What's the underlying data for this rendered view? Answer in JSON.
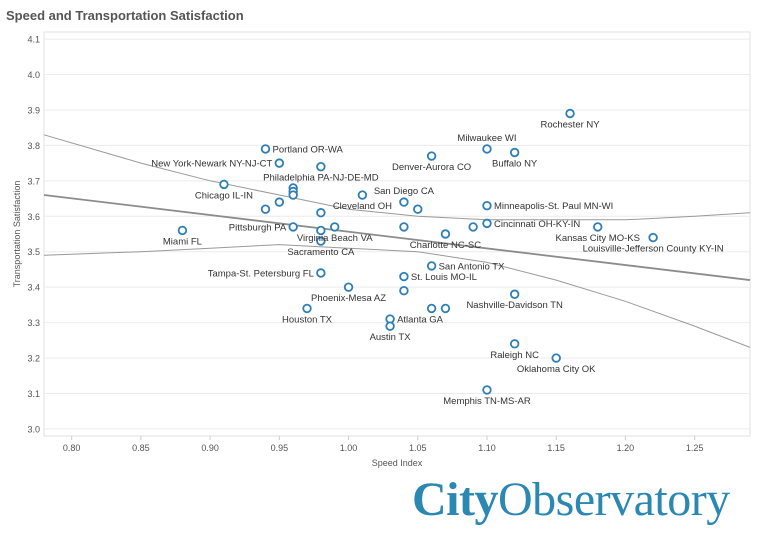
{
  "chart_data": {
    "type": "scatter",
    "title": "Speed and Transportation Satisfaction",
    "xlabel": "Speed Index",
    "ylabel": "Transportation Satisfaction",
    "xlim": [
      0.78,
      1.29
    ],
    "ylim": [
      2.98,
      4.12
    ],
    "xticks": [
      "0.80",
      "0.85",
      "0.90",
      "0.95",
      "1.00",
      "1.05",
      "1.10",
      "1.15",
      "1.20",
      "1.25"
    ],
    "yticks": [
      "3.0",
      "3.1",
      "3.2",
      "3.3",
      "3.4",
      "3.5",
      "3.6",
      "3.7",
      "3.8",
      "3.9",
      "4.0",
      "4.1"
    ],
    "grid": "horizontal",
    "colors": {
      "point": "#2e7fb8",
      "trend": "#8c8c8c",
      "grid": "#ebebeb",
      "axis_text": "#555555"
    },
    "trend_line": {
      "x": [
        0.78,
        1.29
      ],
      "y": [
        3.66,
        3.42
      ]
    },
    "confidence_band": {
      "upper": {
        "x": [
          0.78,
          0.85,
          0.9,
          0.95,
          1.0,
          1.05,
          1.1,
          1.15,
          1.2,
          1.25,
          1.29
        ],
        "y": [
          3.83,
          3.75,
          3.7,
          3.66,
          3.62,
          3.6,
          3.59,
          3.59,
          3.59,
          3.6,
          3.61
        ]
      },
      "lower": {
        "x": [
          0.78,
          0.85,
          0.9,
          0.95,
          1.0,
          1.05,
          1.1,
          1.15,
          1.2,
          1.25,
          1.29
        ],
        "y": [
          3.49,
          3.5,
          3.51,
          3.52,
          3.51,
          3.5,
          3.47,
          3.42,
          3.36,
          3.29,
          3.23
        ]
      }
    },
    "points": [
      {
        "x": 0.88,
        "y": 3.56,
        "label": "Miami FL",
        "anchor": "below"
      },
      {
        "x": 0.91,
        "y": 3.69,
        "label": "Chicago IL-IN",
        "anchor": "below"
      },
      {
        "x": 0.94,
        "y": 3.79,
        "label": "Portland OR-WA",
        "anchor": "right"
      },
      {
        "x": 0.95,
        "y": 3.75,
        "label": "New York-Newark NY-NJ-CT",
        "anchor": "left"
      },
      {
        "x": 0.94,
        "y": 3.62,
        "label": ""
      },
      {
        "x": 0.95,
        "y": 3.64,
        "label": ""
      },
      {
        "x": 0.96,
        "y": 3.68,
        "label": ""
      },
      {
        "x": 0.96,
        "y": 3.67,
        "label": ""
      },
      {
        "x": 0.96,
        "y": 3.66,
        "label": ""
      },
      {
        "x": 0.96,
        "y": 3.57,
        "label": "Pittsburgh PA",
        "anchor": "left"
      },
      {
        "x": 0.98,
        "y": 3.74,
        "label": "Philadelphia PA-NJ-DE-MD",
        "anchor": "below"
      },
      {
        "x": 0.98,
        "y": 3.61,
        "label": ""
      },
      {
        "x": 0.98,
        "y": 3.56,
        "label": ""
      },
      {
        "x": 0.98,
        "y": 3.53,
        "label": "Sacramento CA",
        "anchor": "below"
      },
      {
        "x": 0.98,
        "y": 3.44,
        "label": "Tampa-St. Petersburg FL",
        "anchor": "left"
      },
      {
        "x": 0.99,
        "y": 3.57,
        "label": "Virginia Beach VA",
        "anchor": "below"
      },
      {
        "x": 1.0,
        "y": 3.4,
        "label": "Phoenix-Mesa AZ",
        "anchor": "below"
      },
      {
        "x": 0.97,
        "y": 3.34,
        "label": "Houston TX",
        "anchor": "below"
      },
      {
        "x": 1.01,
        "y": 3.66,
        "label": "Cleveland OH",
        "anchor": "below"
      },
      {
        "x": 1.03,
        "y": 3.31,
        "label": "Atlanta GA",
        "anchor": "right"
      },
      {
        "x": 1.03,
        "y": 3.29,
        "label": "Austin TX",
        "anchor": "below"
      },
      {
        "x": 1.04,
        "y": 3.64,
        "label": "San Diego CA",
        "anchor": "above"
      },
      {
        "x": 1.04,
        "y": 3.57,
        "label": ""
      },
      {
        "x": 1.04,
        "y": 3.43,
        "label": "St. Louis MO-IL",
        "anchor": "right"
      },
      {
        "x": 1.04,
        "y": 3.39,
        "label": ""
      },
      {
        "x": 1.05,
        "y": 3.62,
        "label": ""
      },
      {
        "x": 1.06,
        "y": 3.77,
        "label": "Denver-Aurora CO",
        "anchor": "below"
      },
      {
        "x": 1.06,
        "y": 3.46,
        "label": "San Antonio TX",
        "anchor": "right"
      },
      {
        "x": 1.06,
        "y": 3.34,
        "label": ""
      },
      {
        "x": 1.07,
        "y": 3.55,
        "label": "Charlotte NC-SC",
        "anchor": "below"
      },
      {
        "x": 1.07,
        "y": 3.34,
        "label": ""
      },
      {
        "x": 1.09,
        "y": 3.57,
        "label": ""
      },
      {
        "x": 1.1,
        "y": 3.79,
        "label": "Milwaukee WI",
        "anchor": "above"
      },
      {
        "x": 1.1,
        "y": 3.63,
        "label": "Minneapolis-St. Paul MN-WI",
        "anchor": "right"
      },
      {
        "x": 1.1,
        "y": 3.58,
        "label": "Cincinnati OH-KY-IN",
        "anchor": "right"
      },
      {
        "x": 1.1,
        "y": 3.11,
        "label": "Memphis TN-MS-AR",
        "anchor": "below"
      },
      {
        "x": 1.12,
        "y": 3.78,
        "label": "Buffalo NY",
        "anchor": "below"
      },
      {
        "x": 1.12,
        "y": 3.38,
        "label": "Nashville-Davidson TN",
        "anchor": "below"
      },
      {
        "x": 1.12,
        "y": 3.24,
        "label": "Raleigh NC",
        "anchor": "below"
      },
      {
        "x": 1.15,
        "y": 3.2,
        "label": "Oklahoma City OK",
        "anchor": "below"
      },
      {
        "x": 1.16,
        "y": 3.89,
        "label": "Rochester NY",
        "anchor": "below"
      },
      {
        "x": 1.18,
        "y": 3.57,
        "label": "Kansas City MO-KS",
        "anchor": "below"
      },
      {
        "x": 1.22,
        "y": 3.54,
        "label": "Louisville-Jefferson County KY-IN",
        "anchor": "below"
      }
    ]
  },
  "brand": {
    "part1": "City",
    "part2": "Observatory"
  }
}
